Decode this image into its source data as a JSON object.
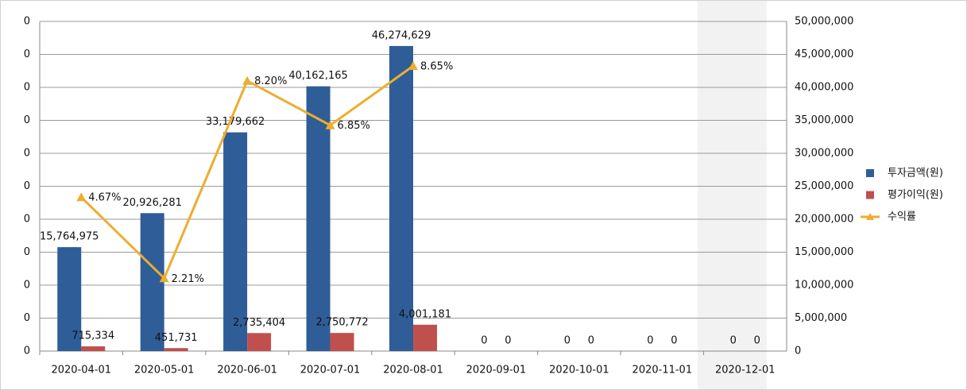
{
  "chart_data": {
    "type": "bar",
    "categories": [
      "2020-04-01",
      "2020-05-01",
      "2020-06-01",
      "2020-07-01",
      "2020-08-01",
      "2020-09-01",
      "2020-10-01",
      "2020-11-01",
      "2020-12-01"
    ],
    "series": [
      {
        "name": "투자금액(원)",
        "color": "#2f5d98",
        "axis": "y2",
        "values": [
          15764975,
          20926281,
          33179662,
          40162165,
          46274629,
          0,
          0,
          0,
          0
        ],
        "value_labels": [
          "15,764,975",
          "20,926,281",
          "33,179,662",
          "40,162,165",
          "46,274,629",
          "0",
          "0",
          "0",
          "0"
        ]
      },
      {
        "name": "평가이익(원)",
        "color": "#c0504d",
        "axis": "y2",
        "values": [
          715334,
          451731,
          2735404,
          2750772,
          4001181,
          0,
          0,
          0,
          0
        ],
        "value_labels": [
          "715,334",
          "451,731",
          "2,735,404",
          "2,750,772",
          "4,001,181",
          "0",
          "0",
          "0",
          "0"
        ]
      },
      {
        "name": "수익률",
        "color": "#edad2e",
        "type": "line",
        "values": [
          0.0467,
          0.0221,
          0.082,
          0.0685,
          0.0865,
          null,
          null,
          null,
          null
        ],
        "value_labels": [
          "4.67%",
          "2.21%",
          "8.20%",
          "6.85%",
          "8.65%",
          null,
          null,
          null,
          null
        ]
      }
    ],
    "ylim": [
      0,
      0.1
    ],
    "yticks": [
      0,
      {
        "value": 0.01,
        "label": "0"
      },
      {
        "value": 0.02,
        "label": "0"
      },
      {
        "value": 0.03,
        "label": "0"
      },
      {
        "value": 0.04,
        "label": "0"
      },
      {
        "value": 0.05,
        "label": "0"
      },
      {
        "value": 0.06,
        "label": "0"
      },
      {
        "value": 0.07,
        "label": "0"
      },
      {
        "value": 0.08,
        "label": "0"
      },
      {
        "value": 0.09,
        "label": "0"
      },
      {
        "value": 0.1,
        "label": "0"
      }
    ],
    "y2lim": [
      0,
      50000000
    ],
    "y2ticks": [
      0,
      {
        "value": 5000000,
        "label": "5,000,000"
      },
      {
        "value": 10000000,
        "label": "10,000,000"
      },
      {
        "value": 15000000,
        "label": "15,000,000"
      },
      {
        "value": 20000000,
        "label": "20,000,000"
      },
      {
        "value": 25000000,
        "label": "25,000,000"
      },
      {
        "value": 30000000,
        "label": "30,000,000"
      },
      {
        "value": 35000000,
        "label": "35,000,000"
      },
      {
        "value": 40000000,
        "label": "40,000,000"
      },
      {
        "value": 45000000,
        "label": "45,000,000"
      },
      {
        "value": 50000000,
        "label": "50,000,000"
      }
    ],
    "grid": true,
    "legend": "right"
  }
}
